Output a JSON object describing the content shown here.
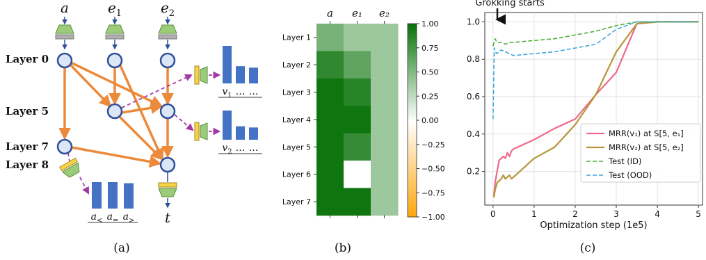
{
  "panel_a": {
    "inputs": [
      {
        "name": "a",
        "sub": ""
      },
      {
        "name": "e",
        "sub": "1"
      },
      {
        "name": "e",
        "sub": "2"
      }
    ],
    "layers": [
      "Layer 0",
      "Layer 5",
      "Layer 7",
      "Layer 8"
    ],
    "output_label": "t",
    "bar_group_1": {
      "values": [
        1.0,
        0.46,
        0.42
      ],
      "labels": [
        "v",
        "…",
        "…"
      ],
      "label_sub": "1"
    },
    "bar_group_2": {
      "values": [
        1.0,
        0.46,
        0.42
      ],
      "labels": [
        "v",
        "…",
        "…"
      ],
      "label_sub": "2"
    },
    "bar_group_3": {
      "values": [
        1.0,
        1.0,
        0.96
      ],
      "labels": [
        "a",
        "a",
        "a"
      ],
      "label_subs": [
        "<",
        "=",
        ">"
      ]
    },
    "colors": {
      "node_fill": "#dce6f5",
      "node_stroke": "#2f4f9a",
      "edge": "#ec8a3b",
      "probe_edge": "#a23aa6",
      "bar": "#4472c4",
      "probe_yellow": "#f7d34a",
      "probe_green": "#9ccc7a"
    },
    "caption": "(a)"
  },
  "panel_b": {
    "chart_data": {
      "type": "heatmap",
      "columns": [
        "a",
        "e₁",
        "e₂"
      ],
      "rows": [
        "Layer 1",
        "Layer 2",
        "Layer 3",
        "Layer 4",
        "Layer 5",
        "Layer 6",
        "Layer 7"
      ],
      "values": [
        [
          0.55,
          0.4,
          0.4
        ],
        [
          0.85,
          0.65,
          0.4
        ],
        [
          0.98,
          0.88,
          0.4
        ],
        [
          0.98,
          0.98,
          0.4
        ],
        [
          0.98,
          0.82,
          0.4
        ],
        [
          0.98,
          0.0,
          0.4
        ],
        [
          0.98,
          0.98,
          0.4
        ]
      ],
      "colorbar": {
        "min": -1.0,
        "max": 1.0,
        "ticks": [
          "1.00",
          "0.75",
          "0.50",
          "0.25",
          "0.00",
          "−0.25",
          "−0.50",
          "−0.75",
          "−1.00"
        ]
      }
    },
    "caption": "(b)"
  },
  "panel_c": {
    "chart_data": {
      "type": "line",
      "xlabel": "Optimization step (1e5)",
      "ylabel": "",
      "xlim": [
        -0.2,
        5.1
      ],
      "ylim": [
        0.02,
        1.05
      ],
      "xticks": [
        "0",
        "1",
        "2",
        "3",
        "4",
        "5"
      ],
      "yticks": [
        "0.2",
        "0.4",
        "0.6",
        "0.8",
        "1.0"
      ],
      "annotation": "Grokking starts",
      "legend_position": "lower-right",
      "series": [
        {
          "name": "MRR(v₁) at S[5, e₁]",
          "color": "#ec6a8a",
          "style": "solid",
          "x": [
            0.02,
            0.05,
            0.1,
            0.15,
            0.2,
            0.25,
            0.3,
            0.35,
            0.4,
            0.45,
            0.5,
            1.0,
            1.5,
            2.0,
            2.5,
            3.0,
            3.5,
            4.0,
            5.0
          ],
          "y": [
            0.07,
            0.14,
            0.2,
            0.26,
            0.27,
            0.28,
            0.27,
            0.3,
            0.28,
            0.31,
            0.32,
            0.37,
            0.43,
            0.48,
            0.61,
            0.73,
            0.99,
            1.0,
            1.0
          ]
        },
        {
          "name": "MRR(v₂) at S[5, e₂]",
          "color": "#b5963a",
          "style": "solid",
          "x": [
            0.02,
            0.05,
            0.1,
            0.15,
            0.2,
            0.25,
            0.3,
            0.35,
            0.4,
            0.45,
            0.5,
            1.0,
            1.5,
            2.0,
            2.5,
            3.0,
            3.5,
            4.0,
            5.0
          ],
          "y": [
            0.06,
            0.1,
            0.14,
            0.15,
            0.16,
            0.18,
            0.16,
            0.17,
            0.18,
            0.16,
            0.17,
            0.27,
            0.33,
            0.45,
            0.61,
            0.84,
            0.99,
            1.0,
            1.0
          ]
        },
        {
          "name": "Test (ID)",
          "color": "#4caf3a",
          "style": "dashed",
          "x": [
            0.0,
            0.05,
            0.1,
            0.2,
            0.3,
            0.4,
            0.5,
            1.0,
            1.5,
            2.0,
            2.5,
            3.0,
            3.5,
            4.0,
            5.0
          ],
          "y": [
            0.87,
            0.91,
            0.89,
            0.89,
            0.88,
            0.89,
            0.89,
            0.9,
            0.91,
            0.93,
            0.95,
            0.98,
            1.0,
            1.0,
            1.0
          ]
        },
        {
          "name": "Test (OOD)",
          "color": "#3fa7dd",
          "style": "dashed",
          "x": [
            0.0,
            0.03,
            0.06,
            0.1,
            0.2,
            0.3,
            0.4,
            0.5,
            1.0,
            1.5,
            2.0,
            2.5,
            3.0,
            3.5,
            4.0,
            5.0
          ],
          "y": [
            0.48,
            0.86,
            0.84,
            0.83,
            0.85,
            0.84,
            0.83,
            0.82,
            0.83,
            0.84,
            0.86,
            0.88,
            0.96,
            1.0,
            1.0,
            1.0
          ]
        }
      ]
    },
    "caption": "(c)"
  }
}
